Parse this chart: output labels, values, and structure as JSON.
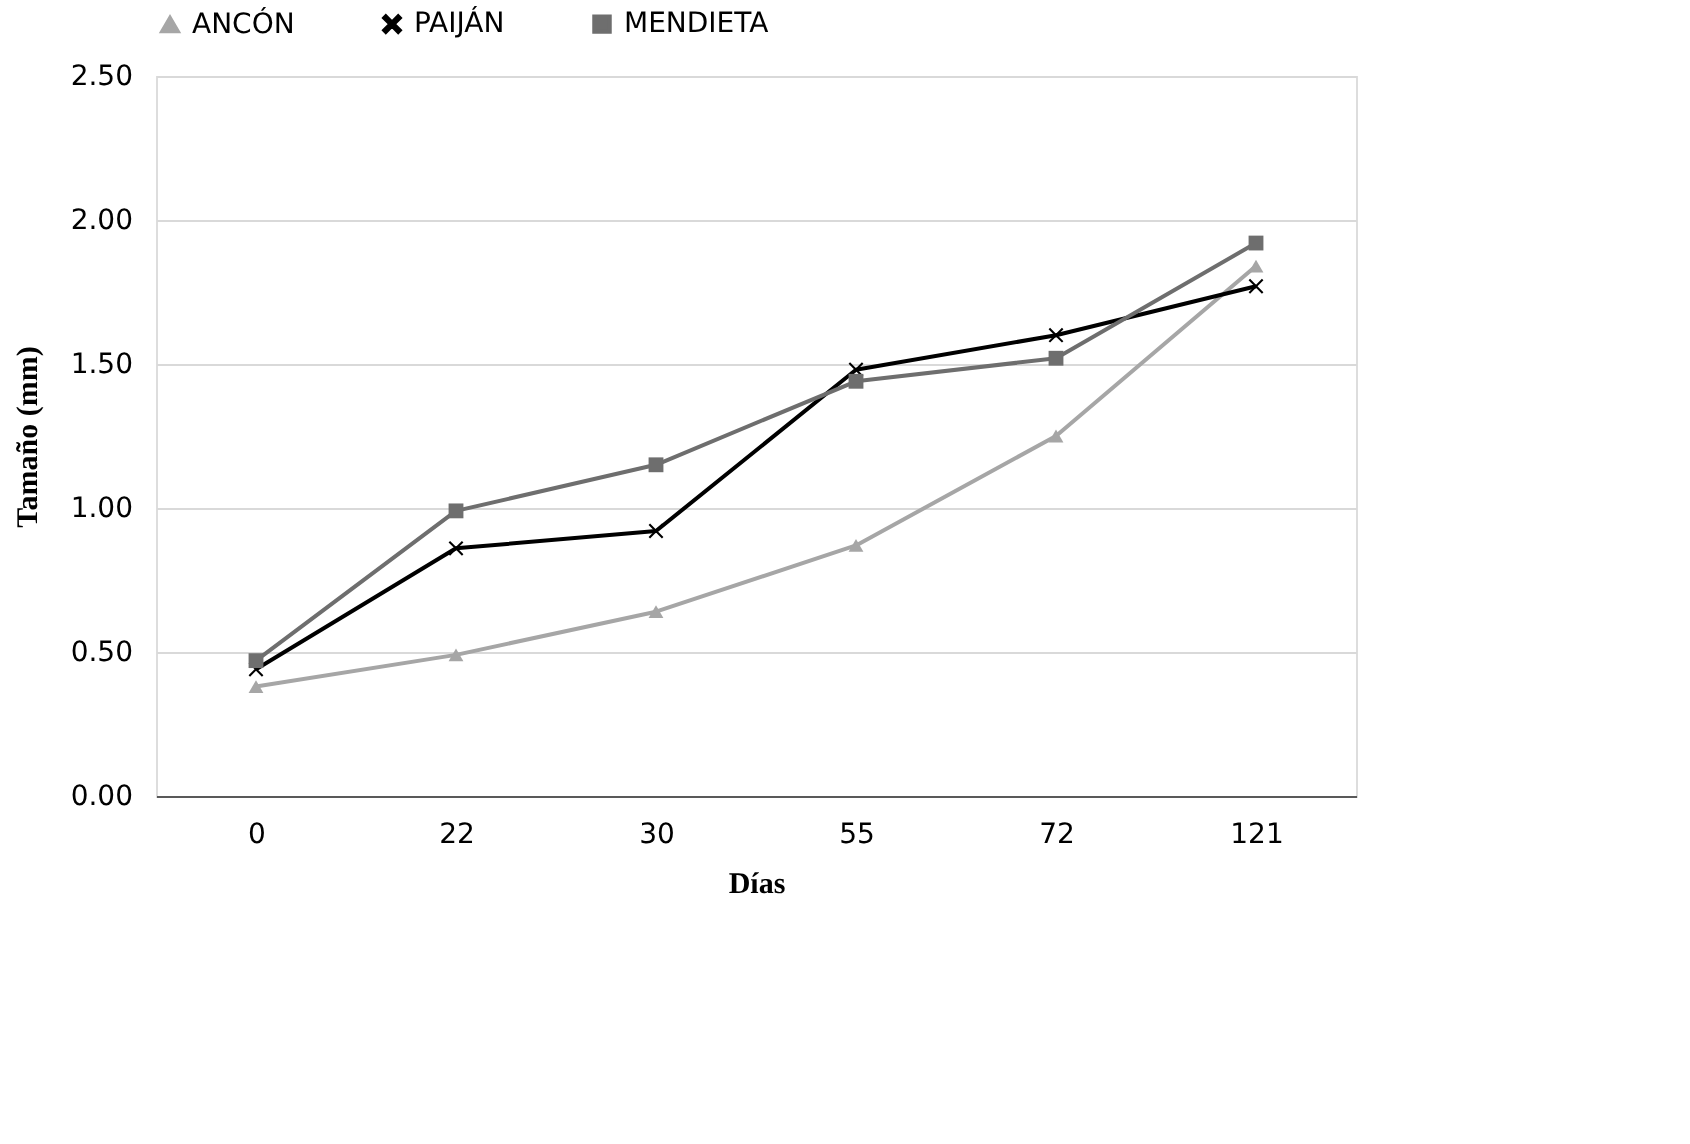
{
  "chart_data": {
    "type": "line",
    "xlabel": "Días",
    "ylabel": "Tamaño (mm)",
    "categories": [
      "0",
      "22",
      "30",
      "55",
      "72",
      "121"
    ],
    "series": [
      {
        "name": "ANCÓN",
        "color": "#a6a6a6",
        "marker": "triangle",
        "values": [
          0.38,
          0.49,
          0.64,
          0.87,
          1.25,
          1.84
        ]
      },
      {
        "name": "PAIJÁN",
        "color": "#000000",
        "marker": "cross",
        "values": [
          0.44,
          0.86,
          0.92,
          1.48,
          1.6,
          1.77
        ]
      },
      {
        "name": "MENDIETA",
        "color": "#6e6e6e",
        "marker": "square",
        "values": [
          0.47,
          0.99,
          1.15,
          1.44,
          1.52,
          1.92
        ]
      }
    ],
    "ylim": [
      0,
      2.5
    ],
    "yticks": [
      {
        "value": 0,
        "label": "0.00"
      },
      {
        "value": 0.5,
        "label": "0.50"
      },
      {
        "value": 1,
        "label": "1.00"
      },
      {
        "value": 1.5,
        "label": "1.50"
      },
      {
        "value": 2,
        "label": "2.00"
      },
      {
        "value": 2.5,
        "label": "2.50"
      }
    ],
    "grid": "y",
    "legend": "top",
    "line_style": "solid"
  }
}
